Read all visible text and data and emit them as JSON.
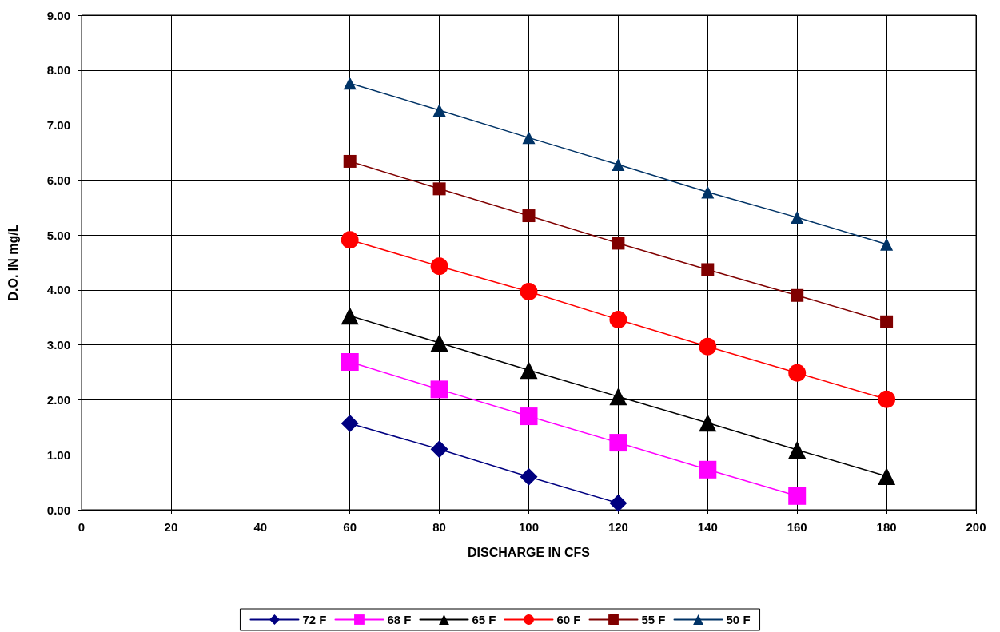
{
  "chart_data": {
    "type": "line",
    "xlabel": "DISCHARGE IN CFS",
    "ylabel": "D.O. IN mg/L",
    "x": [
      60,
      80,
      100,
      120,
      140,
      160,
      180
    ],
    "series": [
      {
        "name": "72 F",
        "color": "#000080",
        "marker": "diamond",
        "values": [
          1.57,
          1.1,
          0.6,
          0.12,
          null,
          null,
          null
        ]
      },
      {
        "name": "68 F",
        "color": "#ff00ff",
        "marker": "square",
        "values": [
          2.69,
          2.19,
          1.7,
          1.22,
          0.73,
          0.25,
          null
        ]
      },
      {
        "name": "65 F",
        "color": "#000000",
        "marker": "triangle",
        "values": [
          3.53,
          3.04,
          2.54,
          2.06,
          1.58,
          1.09,
          0.61
        ]
      },
      {
        "name": "60 F",
        "color": "#ff0000",
        "marker": "circle",
        "values": [
          4.91,
          4.43,
          3.97,
          3.46,
          2.97,
          2.49,
          2.01
        ]
      },
      {
        "name": "55 F",
        "color": "#800000",
        "marker": "square",
        "values": [
          6.34,
          5.84,
          5.35,
          4.85,
          4.37,
          3.9,
          3.42
        ]
      },
      {
        "name": "50 F",
        "color": "#003366",
        "marker": "triangle",
        "values": [
          7.76,
          7.27,
          6.77,
          6.28,
          5.78,
          5.32,
          4.83
        ]
      }
    ],
    "xlim": [
      0,
      200
    ],
    "xticks": [
      0,
      20,
      40,
      60,
      80,
      100,
      120,
      140,
      160,
      180,
      200
    ],
    "ylim": [
      0,
      9
    ],
    "yticks": [
      {
        "value": 0,
        "label": "0.00"
      },
      {
        "value": 1,
        "label": "1.00"
      },
      {
        "value": 2,
        "label": "2.00"
      },
      {
        "value": 3,
        "label": "3.00"
      },
      {
        "value": 4,
        "label": "4.00"
      },
      {
        "value": 5,
        "label": "5.00"
      },
      {
        "value": 6,
        "label": "6.00"
      },
      {
        "value": 7,
        "label": "7.00"
      },
      {
        "value": 8,
        "label": "8.00"
      },
      {
        "value": 9,
        "label": "9.00"
      }
    ],
    "grid": true,
    "legend": "bottom",
    "line_style": "solid"
  }
}
